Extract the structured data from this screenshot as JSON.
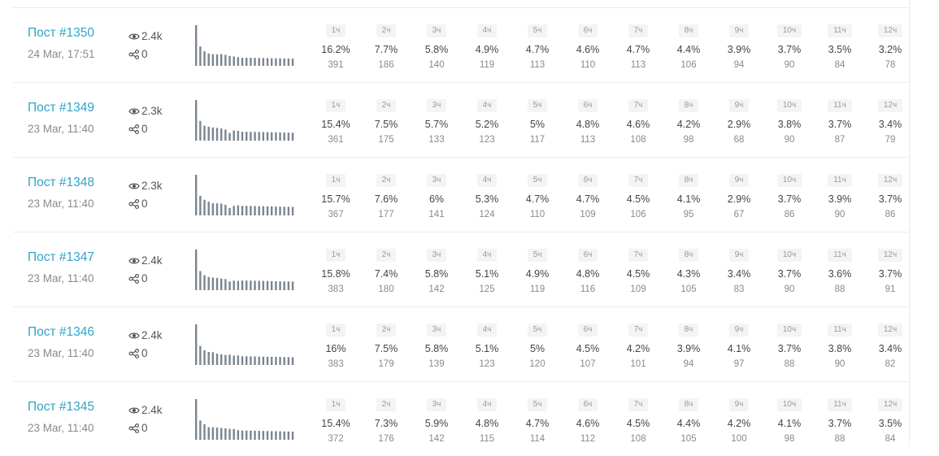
{
  "hour_labels": [
    "1ч",
    "2ч",
    "3ч",
    "4ч",
    "5ч",
    "6ч",
    "7ч",
    "8ч",
    "9ч",
    "10ч",
    "11ч",
    "12ч"
  ],
  "icons": {
    "views": "eye-icon",
    "shares": "share-icon"
  },
  "colors": {
    "accent": "#2fa4c9",
    "sparkline": "#7a8590"
  },
  "posts": [
    {
      "title": "Пост #1350",
      "date": "24 Mar, 17:51",
      "views": "2.4k",
      "shares": "0",
      "hours": [
        {
          "pct": "16.2%",
          "count": "391"
        },
        {
          "pct": "7.7%",
          "count": "186"
        },
        {
          "pct": "5.8%",
          "count": "140"
        },
        {
          "pct": "4.9%",
          "count": "119"
        },
        {
          "pct": "4.7%",
          "count": "113"
        },
        {
          "pct": "4.6%",
          "count": "110"
        },
        {
          "pct": "4.7%",
          "count": "113"
        },
        {
          "pct": "4.4%",
          "count": "106"
        },
        {
          "pct": "3.9%",
          "count": "94"
        },
        {
          "pct": "3.7%",
          "count": "90"
        },
        {
          "pct": "3.5%",
          "count": "84"
        },
        {
          "pct": "3.2%",
          "count": "78"
        }
      ]
    },
    {
      "title": "Пост #1349",
      "date": "23 Mar, 11:40",
      "views": "2.3k",
      "shares": "0",
      "hours": [
        {
          "pct": "15.4%",
          "count": "361"
        },
        {
          "pct": "7.5%",
          "count": "175"
        },
        {
          "pct": "5.7%",
          "count": "133"
        },
        {
          "pct": "5.2%",
          "count": "123"
        },
        {
          "pct": "5%",
          "count": "117"
        },
        {
          "pct": "4.8%",
          "count": "113"
        },
        {
          "pct": "4.6%",
          "count": "108"
        },
        {
          "pct": "4.2%",
          "count": "98"
        },
        {
          "pct": "2.9%",
          "count": "68"
        },
        {
          "pct": "3.8%",
          "count": "90"
        },
        {
          "pct": "3.7%",
          "count": "87"
        },
        {
          "pct": "3.4%",
          "count": "79"
        }
      ]
    },
    {
      "title": "Пост #1348",
      "date": "23 Mar, 11:40",
      "views": "2.3k",
      "shares": "0",
      "hours": [
        {
          "pct": "15.7%",
          "count": "367"
        },
        {
          "pct": "7.6%",
          "count": "177"
        },
        {
          "pct": "6%",
          "count": "141"
        },
        {
          "pct": "5.3%",
          "count": "124"
        },
        {
          "pct": "4.7%",
          "count": "110"
        },
        {
          "pct": "4.7%",
          "count": "109"
        },
        {
          "pct": "4.5%",
          "count": "106"
        },
        {
          "pct": "4.1%",
          "count": "95"
        },
        {
          "pct": "2.9%",
          "count": "67"
        },
        {
          "pct": "3.7%",
          "count": "86"
        },
        {
          "pct": "3.9%",
          "count": "90"
        },
        {
          "pct": "3.7%",
          "count": "86"
        }
      ]
    },
    {
      "title": "Пост #1347",
      "date": "23 Mar, 11:40",
      "views": "2.4k",
      "shares": "0",
      "hours": [
        {
          "pct": "15.8%",
          "count": "383"
        },
        {
          "pct": "7.4%",
          "count": "180"
        },
        {
          "pct": "5.8%",
          "count": "142"
        },
        {
          "pct": "5.1%",
          "count": "125"
        },
        {
          "pct": "4.9%",
          "count": "119"
        },
        {
          "pct": "4.8%",
          "count": "116"
        },
        {
          "pct": "4.5%",
          "count": "109"
        },
        {
          "pct": "4.3%",
          "count": "105"
        },
        {
          "pct": "3.4%",
          "count": "83"
        },
        {
          "pct": "3.7%",
          "count": "90"
        },
        {
          "pct": "3.6%",
          "count": "88"
        },
        {
          "pct": "3.7%",
          "count": "91"
        }
      ]
    },
    {
      "title": "Пост #1346",
      "date": "23 Mar, 11:40",
      "views": "2.4k",
      "shares": "0",
      "hours": [
        {
          "pct": "16%",
          "count": "383"
        },
        {
          "pct": "7.5%",
          "count": "179"
        },
        {
          "pct": "5.8%",
          "count": "139"
        },
        {
          "pct": "5.1%",
          "count": "123"
        },
        {
          "pct": "5%",
          "count": "120"
        },
        {
          "pct": "4.5%",
          "count": "107"
        },
        {
          "pct": "4.2%",
          "count": "101"
        },
        {
          "pct": "3.9%",
          "count": "94"
        },
        {
          "pct": "4.1%",
          "count": "97"
        },
        {
          "pct": "3.7%",
          "count": "88"
        },
        {
          "pct": "3.8%",
          "count": "90"
        },
        {
          "pct": "3.4%",
          "count": "82"
        }
      ]
    },
    {
      "title": "Пост #1345",
      "date": "23 Mar, 11:40",
      "views": "2.4k",
      "shares": "0",
      "hours": [
        {
          "pct": "15.4%",
          "count": "372"
        },
        {
          "pct": "7.3%",
          "count": "176"
        },
        {
          "pct": "5.9%",
          "count": "142"
        },
        {
          "pct": "4.8%",
          "count": "115"
        },
        {
          "pct": "4.7%",
          "count": "114"
        },
        {
          "pct": "4.6%",
          "count": "112"
        },
        {
          "pct": "4.5%",
          "count": "108"
        },
        {
          "pct": "4.4%",
          "count": "105"
        },
        {
          "pct": "4.2%",
          "count": "100"
        },
        {
          "pct": "4.1%",
          "count": "98"
        },
        {
          "pct": "3.7%",
          "count": "88"
        },
        {
          "pct": "3.5%",
          "count": "84"
        }
      ]
    }
  ]
}
